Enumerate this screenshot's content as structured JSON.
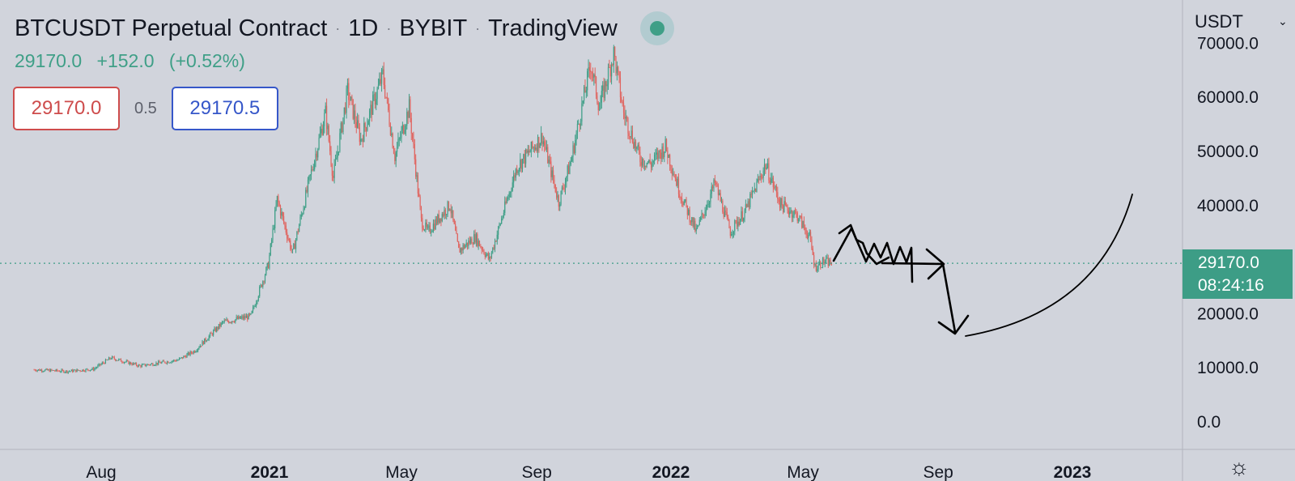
{
  "header": {
    "symbol": "BTCUSDT Perpetual Contract",
    "interval": "1D",
    "exchange": "BYBIT",
    "source": "TradingView"
  },
  "quote": {
    "last": "29170.0",
    "change": "+152.0",
    "change_pct": "(+0.52%)"
  },
  "bid_ask": {
    "sell": "29170.0",
    "spread": "0.5",
    "buy": "29170.5"
  },
  "price_axis": {
    "currency": "USDT",
    "last_price": "29170.0",
    "countdown": "08:24:16"
  },
  "colors": {
    "background": "#d1d4dc",
    "up": "#3f9f87",
    "down": "#e0645f",
    "sell": "#ce4c4c",
    "buy": "#3657c9",
    "drawing": "#000000"
  },
  "chart_data": {
    "type": "candlestick",
    "title": "BTCUSDT Perpetual Contract · 1D · BYBIT",
    "interval": "1D",
    "ylim": [
      0,
      70000
    ],
    "y_ticks": [
      "70000.0",
      "60000.0",
      "50000.0",
      "40000.0",
      "20000.0",
      "10000.0",
      "0.0"
    ],
    "x_ticks": [
      {
        "label": "Aug",
        "date": "2020-08-01",
        "bold": false
      },
      {
        "label": "2021",
        "date": "2021-01-01",
        "bold": true
      },
      {
        "label": "May",
        "date": "2021-05-01",
        "bold": false
      },
      {
        "label": "Sep",
        "date": "2021-09-01",
        "bold": false
      },
      {
        "label": "2022",
        "date": "2022-01-01",
        "bold": true
      },
      {
        "label": "May",
        "date": "2022-05-01",
        "bold": false
      },
      {
        "label": "Sep",
        "date": "2022-09-01",
        "bold": false
      },
      {
        "label": "2023",
        "date": "2023-01-01",
        "bold": true
      }
    ],
    "last_price": 29170.0,
    "price_path": [
      [
        "2020-06-01",
        9500
      ],
      [
        "2020-07-01",
        9200
      ],
      [
        "2020-07-25",
        9600
      ],
      [
        "2020-08-10",
        11700
      ],
      [
        "2020-09-05",
        10200
      ],
      [
        "2020-10-10",
        11300
      ],
      [
        "2020-10-25",
        13000
      ],
      [
        "2020-11-20",
        18300
      ],
      [
        "2020-12-15",
        19400
      ],
      [
        "2020-12-31",
        29000
      ],
      [
        "2021-01-08",
        41000
      ],
      [
        "2021-01-22",
        31000
      ],
      [
        "2021-02-08",
        46000
      ],
      [
        "2021-02-21",
        57000
      ],
      [
        "2021-02-28",
        45000
      ],
      [
        "2021-03-13",
        61000
      ],
      [
        "2021-03-25",
        52000
      ],
      [
        "2021-04-14",
        64000
      ],
      [
        "2021-04-25",
        49000
      ],
      [
        "2021-05-08",
        58000
      ],
      [
        "2021-05-19",
        37000
      ],
      [
        "2021-05-25",
        35000
      ],
      [
        "2021-06-14",
        40000
      ],
      [
        "2021-06-22",
        31500
      ],
      [
        "2021-07-07",
        34000
      ],
      [
        "2021-07-20",
        29800
      ],
      [
        "2021-08-14",
        47000
      ],
      [
        "2021-09-06",
        52600
      ],
      [
        "2021-09-21",
        40500
      ],
      [
        "2021-10-02",
        48000
      ],
      [
        "2021-10-20",
        66000
      ],
      [
        "2021-10-28",
        58000
      ],
      [
        "2021-11-10",
        68000
      ],
      [
        "2021-11-19",
        57000
      ],
      [
        "2021-12-04",
        48500
      ],
      [
        "2021-12-14",
        47500
      ],
      [
        "2021-12-27",
        50800
      ],
      [
        "2022-01-10",
        41800
      ],
      [
        "2022-01-24",
        35000
      ],
      [
        "2022-02-10",
        44000
      ],
      [
        "2022-02-24",
        35000
      ],
      [
        "2022-03-10",
        39000
      ],
      [
        "2022-03-28",
        47400
      ],
      [
        "2022-04-11",
        40000
      ],
      [
        "2022-04-26",
        38000
      ],
      [
        "2022-05-07",
        34000
      ],
      [
        "2022-05-12",
        28500
      ],
      [
        "2022-05-20",
        29500
      ],
      [
        "2022-05-27",
        29170
      ]
    ]
  }
}
